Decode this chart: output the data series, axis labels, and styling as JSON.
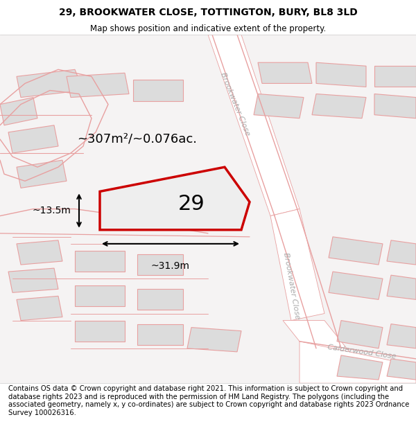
{
  "title_line1": "29, BROOKWATER CLOSE, TOTTINGTON, BURY, BL8 3LD",
  "title_line2": "Map shows position and indicative extent of the property.",
  "footer_text": "Contains OS data © Crown copyright and database right 2021. This information is subject to Crown copyright and database rights 2023 and is reproduced with the permission of HM Land Registry. The polygons (including the associated geometry, namely x, y co-ordinates) are subject to Crown copyright and database rights 2023 Ordnance Survey 100026316.",
  "area_label": "~307m²/~0.076ac.",
  "width_label": "~31.9m",
  "height_label": "~13.5m",
  "property_number": "29",
  "map_bg": "#f7f5f5",
  "building_color": "#dcdcdc",
  "plot_fill": "#ececec",
  "plot_edge": "#cc0000",
  "road_line_color": "#e8a0a0",
  "title_fontsize": 10,
  "footer_fontsize": 7.2,
  "street_label_color": "#aaaaaa"
}
